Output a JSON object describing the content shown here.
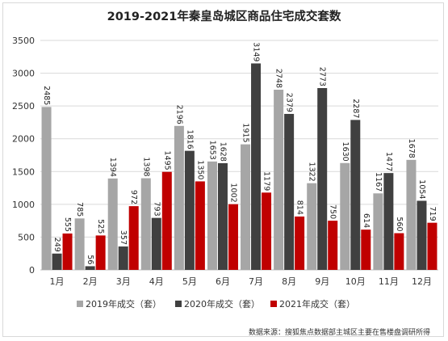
{
  "chart_data": {
    "type": "bar",
    "title": "2019-2021年秦皇岛城区商品住宅成交套数",
    "categories": [
      "1月",
      "2月",
      "3月",
      "4月",
      "5月",
      "6月",
      "7月",
      "8月",
      "9月",
      "10月",
      "11月",
      "12月"
    ],
    "series": [
      {
        "name": "2019年成交（套）",
        "color": "#a6a6a6",
        "values": [
          2485,
          785,
          1394,
          1398,
          2196,
          1653,
          1915,
          2748,
          1322,
          1630,
          1167,
          1678
        ]
      },
      {
        "name": "2020年成交（套）",
        "color": "#404040",
        "values": [
          249,
          56,
          357,
          793,
          1816,
          1628,
          3149,
          2379,
          2773,
          2287,
          1477,
          1054
        ]
      },
      {
        "name": "2021年成交（套）",
        "color": "#c00000",
        "values": [
          555,
          525,
          972,
          1495,
          1350,
          1002,
          1179,
          814,
          750,
          614,
          560,
          719
        ]
      }
    ],
    "ylim": [
      0,
      3500
    ],
    "yticks": [
      0,
      500,
      1000,
      1500,
      2000,
      2500,
      3000,
      3500
    ],
    "xlabel": "",
    "ylabel": "",
    "grid": true,
    "legend_position": "bottom"
  },
  "source_note": "数据来源：搜狐焦点数据部主城区主要在售楼盘调研所得"
}
